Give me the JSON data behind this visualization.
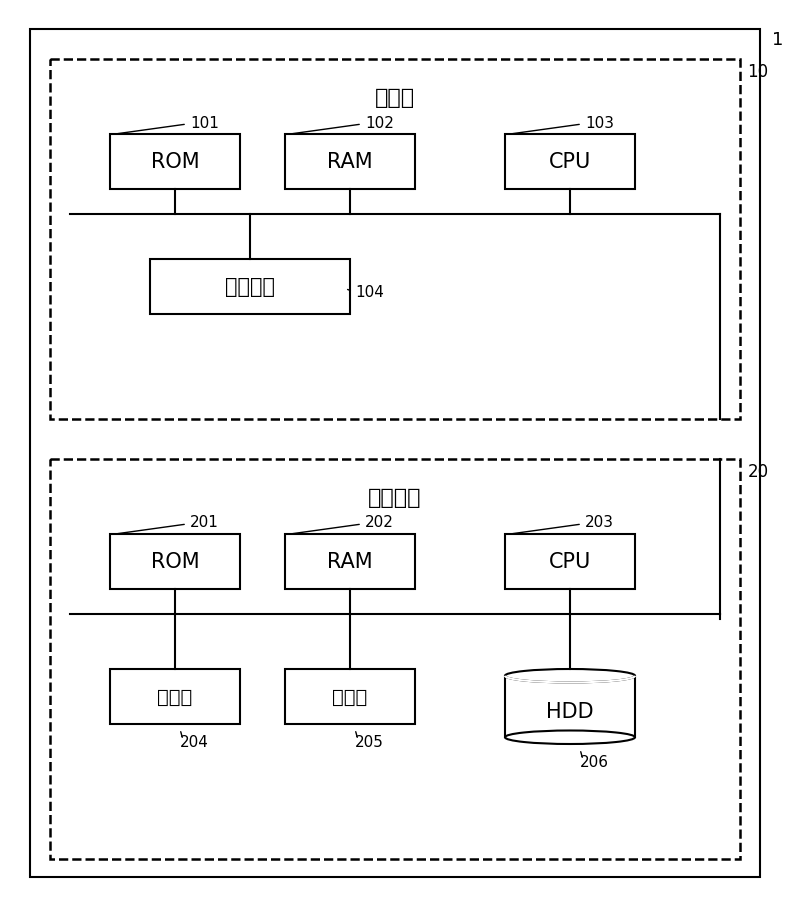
{
  "bg_color": "#ffffff",
  "border_color": "#000000",
  "box_color": "#ffffff",
  "text_color": "#000000",
  "fig_label": "1",
  "section1_label": "10",
  "section2_label": "20",
  "section1_title": "操作部",
  "section2_title": "控制器部",
  "top_boxes": [
    {
      "label": "ROM",
      "ref": "101"
    },
    {
      "label": "RAM",
      "ref": "102"
    },
    {
      "label": "CPU",
      "ref": "103"
    }
  ],
  "mid_box": {
    "label": "操作面板",
    "ref": "104"
  },
  "bottom_top_boxes": [
    {
      "label": "ROM",
      "ref": "201"
    },
    {
      "label": "RAM",
      "ref": "202"
    },
    {
      "label": "CPU",
      "ref": "203"
    }
  ],
  "bottom_boxes": [
    {
      "label": "扫描仪",
      "ref": "204"
    },
    {
      "label": "绘图仪",
      "ref": "205"
    },
    {
      "label": "HDD",
      "ref": "206",
      "is_cylinder": true
    }
  ]
}
